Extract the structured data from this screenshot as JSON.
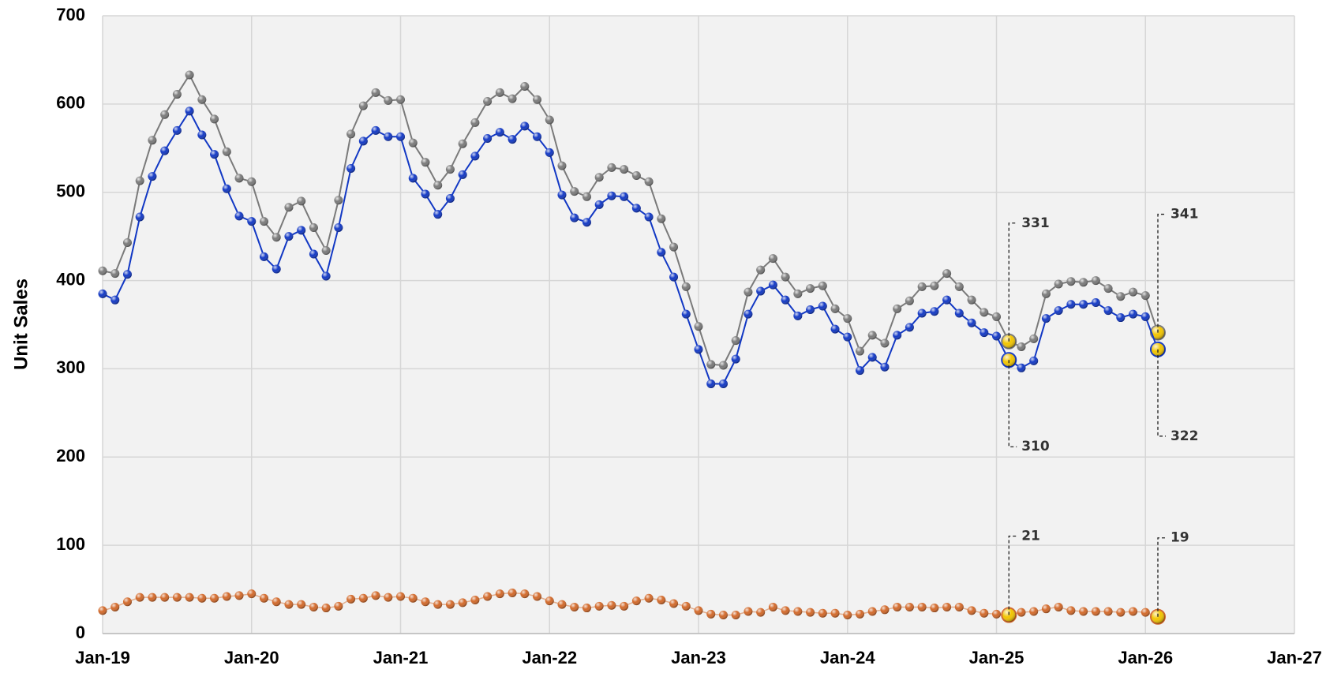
{
  "chart_data": {
    "type": "line",
    "y_label": "Unit Sales",
    "x": [
      "Jan-19",
      "Feb-19",
      "Mar-19",
      "Apr-19",
      "May-19",
      "Jun-19",
      "Jul-19",
      "Aug-19",
      "Sep-19",
      "Oct-19",
      "Nov-19",
      "Dec-19",
      "Jan-20",
      "Feb-20",
      "Mar-20",
      "Apr-20",
      "May-20",
      "Jun-20",
      "Jul-20",
      "Aug-20",
      "Sep-20",
      "Oct-20",
      "Nov-20",
      "Dec-20",
      "Jan-21",
      "Feb-21",
      "Mar-21",
      "Apr-21",
      "May-21",
      "Jun-21",
      "Jul-21",
      "Aug-21",
      "Sep-21",
      "Oct-21",
      "Nov-21",
      "Dec-21",
      "Jan-22",
      "Feb-22",
      "Mar-22",
      "Apr-22",
      "May-22",
      "Jun-22",
      "Jul-22",
      "Aug-22",
      "Sep-22",
      "Oct-22",
      "Nov-22",
      "Dec-22",
      "Jan-23",
      "Feb-23",
      "Mar-23",
      "Apr-23",
      "May-23",
      "Jun-23",
      "Jul-23",
      "Aug-23",
      "Sep-23",
      "Oct-23",
      "Nov-23",
      "Dec-23",
      "Jan-24",
      "Feb-24",
      "Mar-24",
      "Apr-24",
      "May-24",
      "Jun-24",
      "Jul-24",
      "Aug-24",
      "Sep-24",
      "Oct-24",
      "Nov-24",
      "Dec-24",
      "Jan-25",
      "Feb-25",
      "Mar-25",
      "Apr-25",
      "May-25",
      "Jun-25",
      "Jul-25",
      "Aug-25",
      "Sep-25",
      "Oct-25",
      "Nov-25",
      "Dec-25",
      "Jan-26",
      "Feb-26"
    ],
    "series": [
      {
        "color": "#7a7a7a",
        "values": [
          411,
          408,
          443,
          513,
          559,
          588,
          611,
          633,
          605,
          583,
          546,
          516,
          512,
          467,
          449,
          483,
          490,
          460,
          434,
          491,
          566,
          598,
          613,
          604,
          605,
          556,
          534,
          508,
          526,
          555,
          579,
          603,
          613,
          606,
          620,
          605,
          582,
          530,
          501,
          495,
          517,
          528,
          526,
          519,
          512,
          470,
          438,
          393,
          348,
          305,
          304,
          332,
          387,
          412,
          425,
          404,
          385,
          391,
          394,
          368,
          357,
          320,
          338,
          329,
          368,
          377,
          393,
          394,
          408,
          393,
          378,
          364,
          359,
          331,
          325,
          334,
          385,
          396,
          399,
          398,
          400,
          391,
          382,
          387,
          383,
          341
        ]
      },
      {
        "color": "#1238c4",
        "values": [
          385,
          378,
          407,
          472,
          518,
          547,
          570,
          592,
          565,
          543,
          504,
          473,
          467,
          427,
          413,
          450,
          457,
          430,
          405,
          460,
          527,
          558,
          570,
          563,
          563,
          516,
          498,
          475,
          493,
          520,
          541,
          561,
          568,
          560,
          575,
          563,
          545,
          497,
          471,
          466,
          486,
          496,
          495,
          482,
          472,
          432,
          404,
          362,
          322,
          283,
          283,
          311,
          362,
          388,
          395,
          378,
          360,
          367,
          371,
          345,
          336,
          298,
          313,
          302,
          338,
          347,
          363,
          365,
          378,
          363,
          352,
          341,
          337,
          310,
          301,
          309,
          357,
          366,
          373,
          373,
          375,
          366,
          358,
          362,
          359,
          322
        ]
      },
      {
        "color": "#d2692a",
        "values": [
          26,
          30,
          36,
          41,
          41,
          41,
          41,
          41,
          40,
          40,
          42,
          43,
          45,
          40,
          36,
          33,
          33,
          30,
          29,
          31,
          39,
          40,
          43,
          41,
          42,
          40,
          36,
          33,
          33,
          35,
          38,
          42,
          45,
          46,
          45,
          42,
          37,
          33,
          30,
          29,
          31,
          32,
          31,
          37,
          40,
          38,
          34,
          31,
          26,
          22,
          21,
          21,
          25,
          24,
          30,
          26,
          25,
          24,
          23,
          23,
          21,
          22,
          25,
          27,
          30,
          30,
          30,
          29,
          30,
          30,
          26,
          23,
          22,
          21,
          24,
          25,
          28,
          30,
          26,
          25,
          25,
          25,
          24,
          25,
          24,
          19
        ]
      }
    ],
    "highlight": [
      "Feb-25",
      "Feb-26"
    ],
    "highlight_color": "#f2c500",
    "xlim": [
      "Jan-19",
      "Jan-27"
    ],
    "xticks": [
      "Jan-19",
      "Jan-20",
      "Jan-21",
      "Jan-22",
      "Jan-23",
      "Jan-24",
      "Jan-25",
      "Jan-26",
      "Jan-27"
    ],
    "ylim": [
      0,
      700
    ],
    "yticks": [
      0,
      100,
      200,
      300,
      400,
      500,
      600,
      700
    ],
    "grid": true
  }
}
